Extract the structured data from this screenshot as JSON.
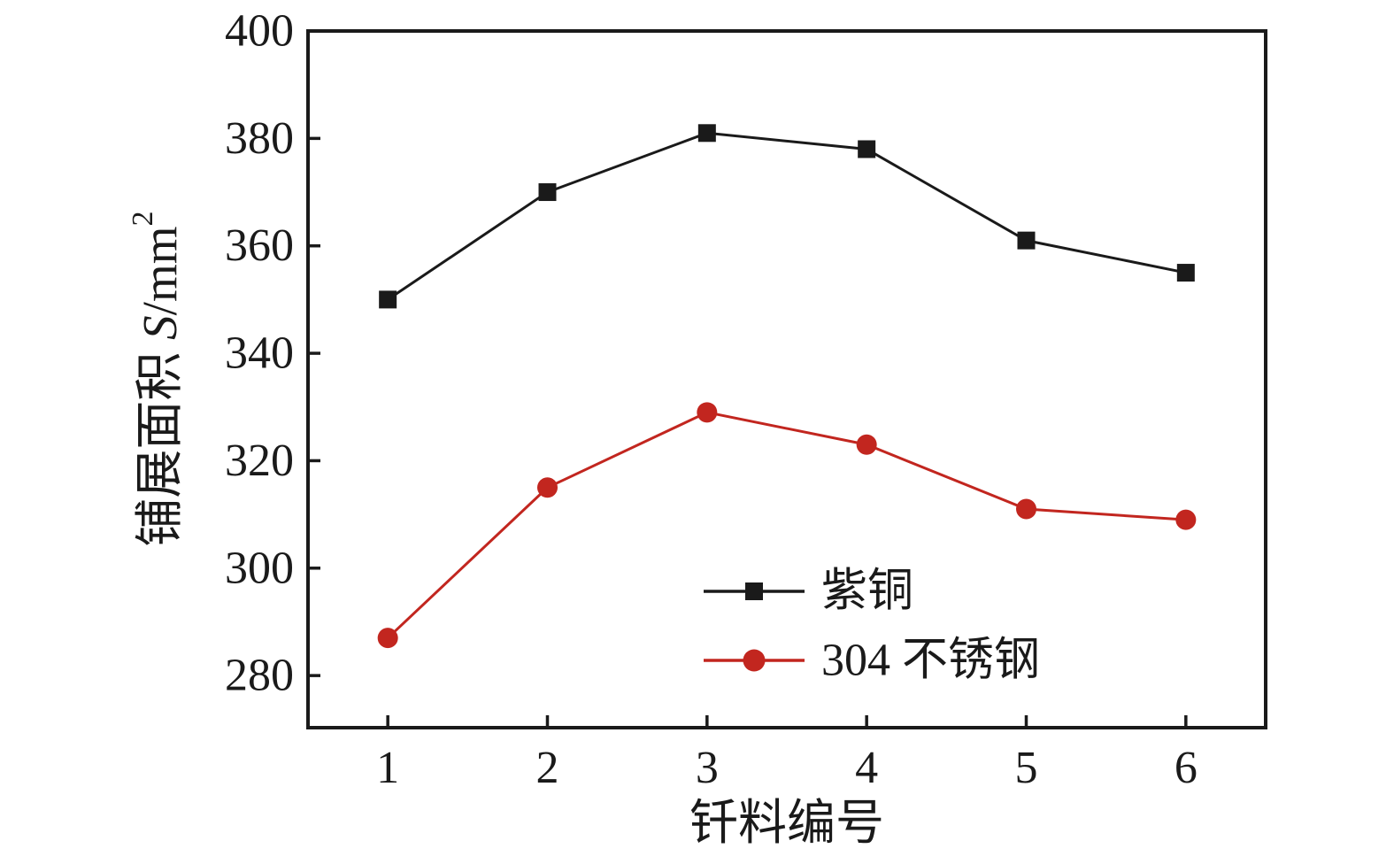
{
  "chart_data": {
    "type": "line",
    "title": "",
    "xlabel": "钎料编号",
    "ylabel": "铺展面积 S/mm²",
    "ylabel_parts": {
      "prefix": "铺展面积 ",
      "italic_symbol": "S",
      "unit": "/mm",
      "superscript": "2"
    },
    "categories": [
      1,
      2,
      3,
      4,
      5,
      6
    ],
    "xticks": [
      "1",
      "2",
      "3",
      "4",
      "5",
      "6"
    ],
    "yticks": [
      280,
      300,
      320,
      340,
      360,
      380,
      400
    ],
    "xlim": [
      0.5,
      6.5
    ],
    "ylim": [
      270.3,
      400
    ],
    "grid": false,
    "legend_position": "inside-lower-right",
    "series": [
      {
        "name": "紫铜",
        "marker": "square",
        "color": "#1a1a1a",
        "values": [
          350,
          370,
          381,
          378,
          361,
          355
        ]
      },
      {
        "name": "304 不锈钢",
        "marker": "circle",
        "color": "#c2261f",
        "values": [
          287,
          315,
          329,
          323,
          311,
          309
        ]
      }
    ]
  },
  "meta": {
    "background_color": "#ffffff",
    "frame_color": "#1a1a1a"
  }
}
